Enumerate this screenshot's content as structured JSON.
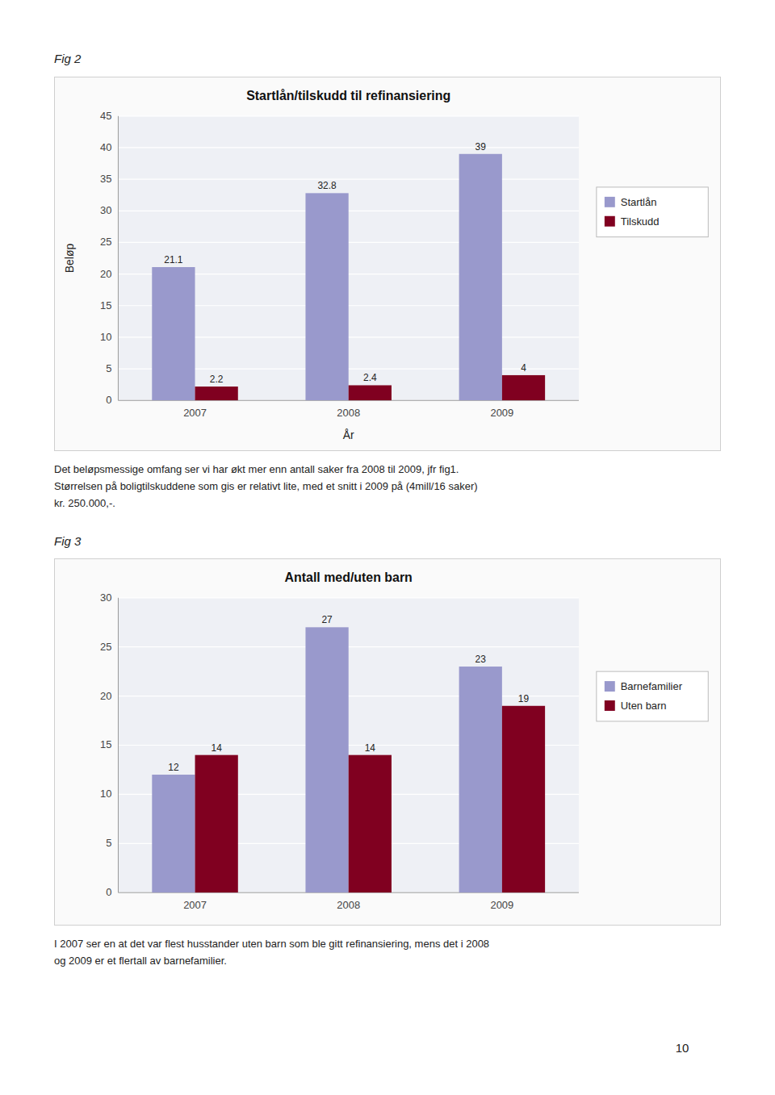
{
  "chart_data": [
    {
      "type": "bar",
      "title": "Startlån/tilskudd til refinansiering",
      "categories": [
        "2007",
        "2008",
        "2009"
      ],
      "series": [
        {
          "name": "Startlån",
          "color": "#9999cc",
          "values": [
            21.1,
            32.8,
            39
          ]
        },
        {
          "name": "Tilskudd",
          "color": "#800020",
          "values": [
            2.2,
            2.4,
            4
          ]
        }
      ],
      "xlabel": "År",
      "ylabel": "Beløp",
      "ylim": [
        0,
        45
      ],
      "yticks": [
        0,
        5,
        10,
        15,
        20,
        25,
        30,
        35,
        40,
        45
      ],
      "grid": true,
      "legend": "right",
      "data_labels": true
    },
    {
      "type": "bar",
      "title": "Antall med/uten barn",
      "categories": [
        "2007",
        "2008",
        "2009"
      ],
      "series": [
        {
          "name": "Barnefamilier",
          "color": "#9999cc",
          "values": [
            12,
            27,
            23
          ]
        },
        {
          "name": "Uten barn",
          "color": "#800020",
          "values": [
            14,
            14,
            19
          ]
        }
      ],
      "ylim": [
        0,
        30
      ],
      "yticks": [
        0,
        5,
        10,
        15,
        20,
        25,
        30
      ],
      "grid": true,
      "legend": "right",
      "data_labels": true
    }
  ],
  "fig2_label": "Fig 2",
  "text2": "Det beløpsmessige omfang ser vi har økt mer enn antall saker fra 2008 til 2009, jfr fig1.\nStørrelsen på boligtilskuddene som gis er relativt lite, med et snitt i 2009 på (4mill/16 saker)\nkr. 250.000,-.",
  "fig3_label": "Fig 3",
  "text4": "I 2007 ser en at det var flest husstander uten barn som ble gitt refinansiering, mens det i 2008\nog 2009 er et flertall av barnefamilier.",
  "page_number": "10"
}
